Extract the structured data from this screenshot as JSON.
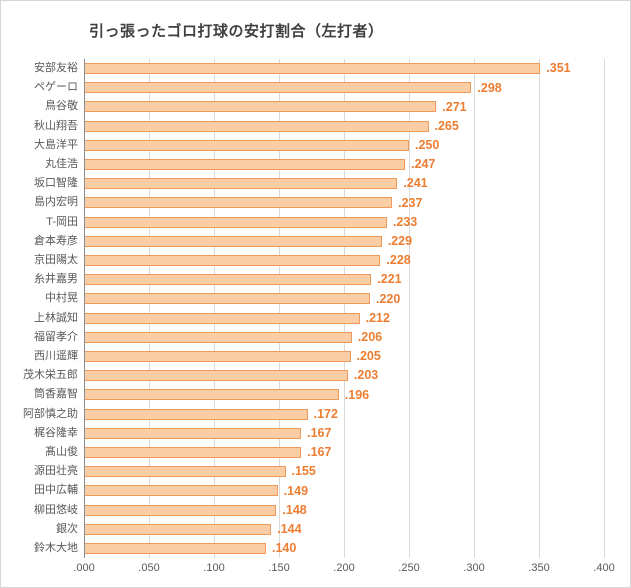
{
  "chart_data": {
    "type": "bar",
    "orientation": "horizontal",
    "title": "引っ張ったゴロ打球の安打割合（左打者）",
    "categories": [
      "安部友裕",
      "ペゲーロ",
      "鳥谷敬",
      "秋山翔吾",
      "大島洋平",
      "丸佳浩",
      "坂口智隆",
      "島内宏明",
      "T-岡田",
      "倉本寿彦",
      "京田陽太",
      "糸井嘉男",
      "中村晃",
      "上林誠知",
      "福留孝介",
      "西川遥輝",
      "茂木栄五郎",
      "筒香嘉智",
      "阿部慎之助",
      "梶谷隆幸",
      "髙山俊",
      "源田壮亮",
      "田中広輔",
      "柳田悠岐",
      "銀次",
      "鈴木大地"
    ],
    "values": [
      0.351,
      0.298,
      0.271,
      0.265,
      0.25,
      0.247,
      0.241,
      0.237,
      0.233,
      0.229,
      0.228,
      0.221,
      0.22,
      0.212,
      0.206,
      0.205,
      0.203,
      0.196,
      0.172,
      0.167,
      0.167,
      0.155,
      0.149,
      0.148,
      0.144,
      0.14
    ],
    "value_labels": [
      ".351",
      ".298",
      ".271",
      ".265",
      ".250",
      ".247",
      ".241",
      ".237",
      ".233",
      ".229",
      ".228",
      ".221",
      ".220",
      ".212",
      ".206",
      ".205",
      ".203",
      ".196",
      ".172",
      ".167",
      ".167",
      ".155",
      ".149",
      ".148",
      ".144",
      ".140"
    ],
    "x_tick_labels": [
      ".000",
      ".050",
      ".100",
      ".150",
      ".200",
      ".250",
      ".300",
      ".350",
      ".400"
    ],
    "xlim": [
      0,
      0.4
    ],
    "grid": true,
    "legend": false,
    "colors": {
      "bar_fill": "#FACDA5",
      "bar_border": "#ED9A5B",
      "value_label": "#ED7D31",
      "title": "#404040",
      "category_label": "#595959",
      "tick_label": "#595959",
      "gridline": "#D9D9D9",
      "axis_line": "#8C8C8C",
      "background": "#FFFFFF",
      "frame_border": "#D6D6D6"
    }
  }
}
